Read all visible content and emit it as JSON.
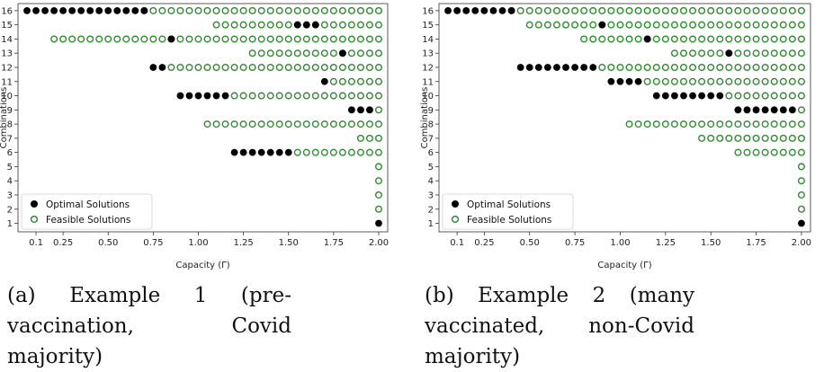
{
  "chart_data": [
    {
      "type": "scatter",
      "xlabel": "Capacity (Γ)",
      "ylabel": "Combinations",
      "xlim": [
        0.0,
        2.05
      ],
      "ylim": [
        0.4,
        16.5
      ],
      "x_ticks": [
        0.1,
        0.25,
        0.5,
        0.75,
        1.0,
        1.25,
        1.5,
        1.75,
        2.0
      ],
      "x_tick_labels": [
        "0.1",
        "0.25",
        "0.50",
        "0.75",
        "1.00",
        "1.25",
        "1.50",
        "1.75",
        "2.00"
      ],
      "y_ticks": [
        1,
        2,
        3,
        4,
        5,
        6,
        7,
        8,
        9,
        10,
        11,
        12,
        13,
        14,
        15,
        16
      ],
      "legend": {
        "position": "lower-left",
        "entries": [
          "Optimal Solutions",
          "Feasible Solutions"
        ]
      },
      "colors": {
        "optimal": "#000000",
        "feasible": "#2e8b2e"
      },
      "grid": false,
      "series": [
        {
          "name": "Feasible Solutions",
          "marker": "open-circle",
          "rows": [
            {
              "y": 16,
              "x_from": 0.7,
              "x_to": 2.0
            },
            {
              "y": 15,
              "x_from": 1.1,
              "x_to": 2.0
            },
            {
              "y": 14,
              "x_from": 0.2,
              "x_to": 2.0
            },
            {
              "y": 13,
              "x_from": 1.3,
              "x_to": 2.0
            },
            {
              "y": 12,
              "x_from": 0.85,
              "x_to": 2.0
            },
            {
              "y": 11,
              "x_from": 1.75,
              "x_to": 2.0
            },
            {
              "y": 10,
              "x_from": 1.2,
              "x_to": 2.0
            },
            {
              "y": 9,
              "x_from": 2.0,
              "x_to": 2.0
            },
            {
              "y": 8,
              "x_from": 1.05,
              "x_to": 2.0
            },
            {
              "y": 7,
              "x_from": 1.9,
              "x_to": 2.0
            },
            {
              "y": 6,
              "x_from": 1.55,
              "x_to": 2.0
            },
            {
              "y": 5,
              "x_from": 2.0,
              "x_to": 2.0
            },
            {
              "y": 4,
              "x_from": 2.0,
              "x_to": 2.0
            },
            {
              "y": 3,
              "x_from": 2.0,
              "x_to": 2.0
            },
            {
              "y": 2,
              "x_from": 2.0,
              "x_to": 2.0
            }
          ]
        },
        {
          "name": "Optimal Solutions",
          "marker": "filled-circle",
          "rows": [
            {
              "y": 16,
              "x_from": 0.05,
              "x_to": 0.7
            },
            {
              "y": 15,
              "x_from": 1.55,
              "x_to": 1.65
            },
            {
              "y": 14,
              "x_from": 0.85,
              "x_to": 0.85
            },
            {
              "y": 13,
              "x_from": 1.8,
              "x_to": 1.8
            },
            {
              "y": 12,
              "x_from": 0.75,
              "x_to": 0.8
            },
            {
              "y": 11,
              "x_from": 1.7,
              "x_to": 1.7
            },
            {
              "y": 10,
              "x_from": 0.9,
              "x_to": 1.15
            },
            {
              "y": 9,
              "x_from": 1.85,
              "x_to": 1.95
            },
            {
              "y": 6,
              "x_from": 1.2,
              "x_to": 1.5
            },
            {
              "y": 1,
              "x_from": 2.0,
              "x_to": 2.0
            }
          ]
        }
      ],
      "caption_label": "(a)",
      "caption_text": "Example 1 (pre-vaccination, Covid majority)"
    },
    {
      "type": "scatter",
      "xlabel": "Capacity (Γ)",
      "ylabel": "Combinations",
      "xlim": [
        0.0,
        2.05
      ],
      "ylim": [
        0.4,
        16.5
      ],
      "x_ticks": [
        0.1,
        0.25,
        0.5,
        0.75,
        1.0,
        1.25,
        1.5,
        1.75,
        2.0
      ],
      "x_tick_labels": [
        "0.1",
        "0.25",
        "0.50",
        "0.75",
        "1.00",
        "1.25",
        "1.50",
        "1.75",
        "2.00"
      ],
      "y_ticks": [
        1,
        2,
        3,
        4,
        5,
        6,
        7,
        8,
        9,
        10,
        11,
        12,
        13,
        14,
        15,
        16
      ],
      "legend": {
        "position": "lower-left",
        "entries": [
          "Optimal Solutions",
          "Feasible Solutions"
        ]
      },
      "colors": {
        "optimal": "#000000",
        "feasible": "#2e8b2e"
      },
      "grid": false,
      "series": [
        {
          "name": "Feasible Solutions",
          "marker": "open-circle",
          "rows": [
            {
              "y": 16,
              "x_from": 0.4,
              "x_to": 2.0
            },
            {
              "y": 15,
              "x_from": 0.5,
              "x_to": 2.0
            },
            {
              "y": 14,
              "x_from": 0.8,
              "x_to": 2.0
            },
            {
              "y": 13,
              "x_from": 1.3,
              "x_to": 2.0
            },
            {
              "y": 12,
              "x_from": 0.9,
              "x_to": 2.0
            },
            {
              "y": 11,
              "x_from": 1.15,
              "x_to": 2.0
            },
            {
              "y": 10,
              "x_from": 1.6,
              "x_to": 2.0
            },
            {
              "y": 9,
              "x_from": 2.0,
              "x_to": 2.0
            },
            {
              "y": 8,
              "x_from": 1.05,
              "x_to": 2.0
            },
            {
              "y": 7,
              "x_from": 1.45,
              "x_to": 2.0
            },
            {
              "y": 6,
              "x_from": 1.65,
              "x_to": 2.0
            },
            {
              "y": 5,
              "x_from": 2.0,
              "x_to": 2.0
            },
            {
              "y": 4,
              "x_from": 2.0,
              "x_to": 2.0
            },
            {
              "y": 3,
              "x_from": 2.0,
              "x_to": 2.0
            },
            {
              "y": 2,
              "x_from": 2.0,
              "x_to": 2.0
            }
          ]
        },
        {
          "name": "Optimal Solutions",
          "marker": "filled-circle",
          "rows": [
            {
              "y": 16,
              "x_from": 0.05,
              "x_to": 0.4
            },
            {
              "y": 15,
              "x_from": 0.9,
              "x_to": 0.9
            },
            {
              "y": 14,
              "x_from": 1.15,
              "x_to": 1.15
            },
            {
              "y": 13,
              "x_from": 1.6,
              "x_to": 1.6
            },
            {
              "y": 12,
              "x_from": 0.45,
              "x_to": 0.85
            },
            {
              "y": 11,
              "x_from": 0.95,
              "x_to": 1.1
            },
            {
              "y": 10,
              "x_from": 1.2,
              "x_to": 1.55
            },
            {
              "y": 9,
              "x_from": 1.65,
              "x_to": 1.95
            },
            {
              "y": 1,
              "x_from": 2.0,
              "x_to": 2.0
            }
          ]
        }
      ],
      "caption_label": "(b)",
      "caption_text": "Example 2 (many vaccinated, non-Covid majority)"
    }
  ]
}
